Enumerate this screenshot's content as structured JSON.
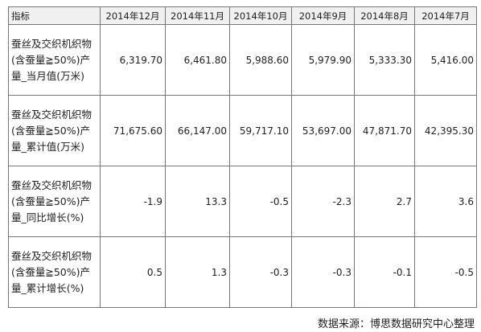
{
  "table": {
    "header": [
      "指标",
      "2014年12月",
      "2014年11月",
      "2014年10月",
      "2014年9月",
      "2014年8月",
      "2014年7月"
    ],
    "rows": [
      [
        "蚕丝及交织机织物(含蚕量≧50%)产量_当月值(万米)",
        "6,319.70",
        "6,461.80",
        "5,988.60",
        "5,979.90",
        "5,333.30",
        "5,416.00"
      ],
      [
        "蚕丝及交织机织物(含蚕量≧50%)产量_累计值(万米)",
        "71,675.60",
        "66,147.00",
        "59,717.10",
        "53,697.00",
        "47,871.70",
        "42,395.30"
      ],
      [
        "蚕丝及交织机织物(含蚕量≧50%)产量_同比增长(%)",
        "-1.9",
        "13.3",
        "-0.5",
        "-2.3",
        "2.7",
        "3.6"
      ],
      [
        "蚕丝及交织机织物(含蚕量≧50%)产量_累计增长(%)",
        "0.5",
        "1.3",
        "-0.3",
        "-0.3",
        "-0.1",
        "-0.5"
      ]
    ]
  },
  "source": "数据来源：博思数据研究中心整理"
}
